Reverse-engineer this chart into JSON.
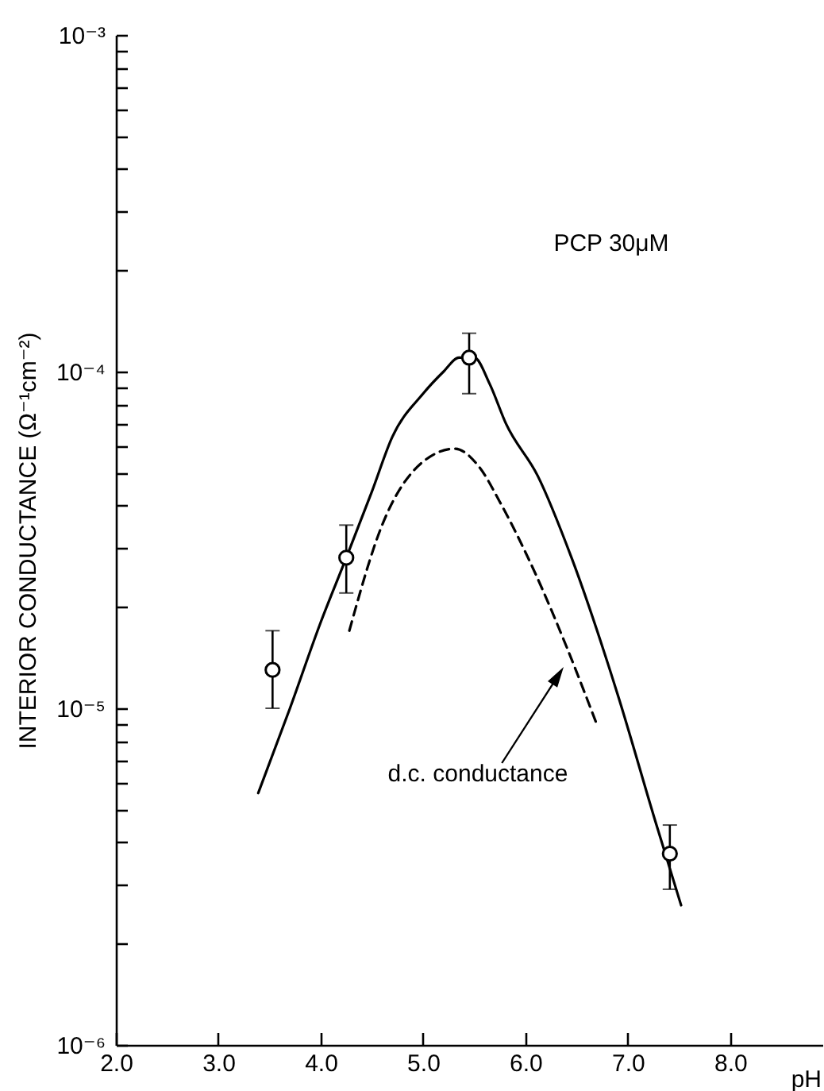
{
  "chart_data": {
    "type": "line",
    "xlabel": "pH",
    "ylabel": "INTERIOR CONDUCTANCE (Ω⁻¹cm⁻²)",
    "log": "y",
    "grid": false,
    "xlim": [
      2.0,
      8.9
    ],
    "xticks": [
      {
        "value": 2,
        "label": "2.0"
      },
      {
        "value": 3,
        "label": "3.0"
      },
      {
        "value": 4,
        "label": "4.0"
      },
      {
        "value": 5,
        "label": "5.0"
      },
      {
        "value": 6,
        "label": "6.0"
      },
      {
        "value": 7,
        "label": "7.0"
      },
      {
        "value": 8,
        "label": "8.0"
      }
    ],
    "ylim": [
      1e-06,
      0.001
    ],
    "yticks": [
      {
        "value": 1e-06,
        "label": "10⁻⁶"
      },
      {
        "value": 2e-06,
        "label": null
      },
      {
        "value": 3e-06,
        "label": null
      },
      {
        "value": 4e-06,
        "label": null
      },
      {
        "value": 5e-06,
        "label": null
      },
      {
        "value": 6e-06,
        "label": null
      },
      {
        "value": 7e-06,
        "label": null
      },
      {
        "value": 8e-06,
        "label": null
      },
      {
        "value": 9e-06,
        "label": null
      },
      {
        "value": 1e-05,
        "label": "10⁻⁵"
      },
      {
        "value": 2e-05,
        "label": null
      },
      {
        "value": 3e-05,
        "label": null
      },
      {
        "value": 4e-05,
        "label": null
      },
      {
        "value": 5e-05,
        "label": null
      },
      {
        "value": 6e-05,
        "label": null
      },
      {
        "value": 7e-05,
        "label": null
      },
      {
        "value": 8e-05,
        "label": null
      },
      {
        "value": 9e-05,
        "label": null
      },
      {
        "value": 0.0001,
        "label": "10⁻⁴"
      },
      {
        "value": 0.0002,
        "label": null
      },
      {
        "value": 0.0003,
        "label": null
      },
      {
        "value": 0.0004,
        "label": null
      },
      {
        "value": 0.0005,
        "label": null
      },
      {
        "value": 0.0006,
        "label": null
      },
      {
        "value": 0.0007,
        "label": null
      },
      {
        "value": 0.0008,
        "label": null
      },
      {
        "value": 0.0009,
        "label": null
      },
      {
        "value": 0.001,
        "label": "10⁻³"
      }
    ],
    "series": [
      {
        "color": "#000000",
        "line_style": "solid",
        "marker": "none",
        "x": [
          3.39,
          3.7,
          4.0,
          4.25,
          4.5,
          4.7,
          5.0,
          5.2,
          5.35,
          5.5,
          5.65,
          5.81,
          6.12,
          6.45,
          6.9,
          7.27,
          7.52
        ],
        "values": [
          5.6e-06,
          1e-05,
          1.8e-05,
          2.8e-05,
          4.4e-05,
          6.4e-05,
          8.6e-05,
          0.0001,
          0.00011,
          0.00011,
          9.2e-05,
          7e-05,
          4.9e-05,
          2.8e-05,
          1.1e-05,
          4.6e-06,
          2.6e-06
        ]
      },
      {
        "color": "#000000",
        "line_style": "dashed",
        "marker": "none",
        "x": [
          4.28,
          4.6,
          5.0,
          5.31,
          5.55,
          5.75,
          6.1,
          6.41,
          6.7
        ],
        "values": [
          1.7e-05,
          3.5e-05,
          5.4e-05,
          5.9e-05,
          5.2e-05,
          4.1e-05,
          2.5e-05,
          1.5e-05,
          8.9e-06
        ]
      },
      {
        "type": "scatter",
        "color": "#000000",
        "marker": "circle",
        "x": [
          3.53,
          4.25,
          5.45,
          7.41
        ],
        "values": [
          1.3e-05,
          2.8e-05,
          0.00011,
          3.7e-06
        ],
        "errors": [
          [
            1e-05,
            1.7e-05
          ],
          [
            2.2e-05,
            3.5e-05
          ],
          [
            8.6e-05,
            0.00013
          ],
          [
            2.9e-06,
            4.5e-06
          ]
        ]
      }
    ],
    "annotations": [
      "PCP 30μM",
      "d.c. conductance"
    ]
  }
}
